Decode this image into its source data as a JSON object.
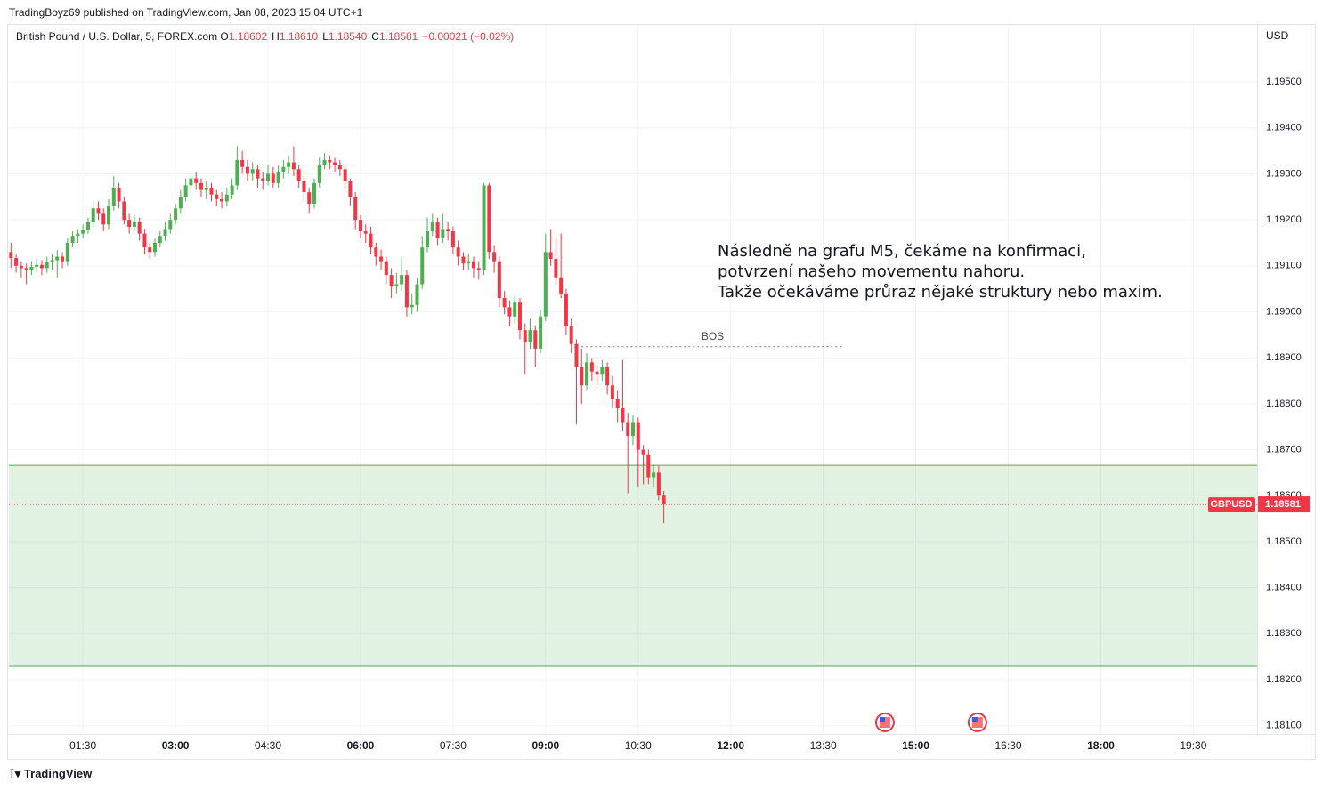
{
  "header": "TradingBoyz69 published on TradingView.com, Jan 08, 2023 15:04 UTC+1",
  "footer": "TradingView",
  "chart_data": {
    "type": "candlestick",
    "title": "British Pound / U.S. Dollar, 5, FOREX.com",
    "legend": [
      {
        "key": "O",
        "value": "1.18602"
      },
      {
        "key": "H",
        "value": "1.18610"
      },
      {
        "key": "L",
        "value": "1.18540"
      },
      {
        "key": "C",
        "value": "1.18581"
      }
    ],
    "change": "−0.00021 (−0.02%)",
    "currency": "USD",
    "grid": true,
    "series": [
      {
        "name": "GBPUSD",
        "up_color": "#4caf50",
        "down_color": "#f23645",
        "x": [
          20,
          25,
          30,
          35,
          40,
          45,
          50,
          55,
          60,
          65,
          70,
          75,
          80,
          85,
          90,
          95,
          100,
          105,
          110,
          115,
          120,
          125,
          130,
          135,
          140,
          145,
          150,
          155,
          160,
          165,
          170,
          175,
          180,
          185,
          190,
          195,
          200,
          205,
          210,
          215,
          220,
          225,
          230,
          235,
          240,
          245,
          250,
          255,
          260,
          265,
          270,
          275,
          280,
          285,
          290,
          295,
          300,
          305,
          310,
          315,
          320,
          325,
          330,
          335,
          340,
          345,
          350,
          355,
          360,
          365,
          370,
          375,
          380,
          385,
          390,
          395,
          400,
          405,
          410,
          415,
          420,
          425,
          430,
          435,
          440,
          445,
          450,
          455,
          460,
          465,
          470,
          475,
          480,
          485,
          490,
          495,
          500,
          505,
          510,
          515,
          520,
          525,
          530,
          535,
          540,
          545,
          550,
          555,
          560,
          565,
          570,
          575,
          580,
          585,
          590,
          595,
          600,
          605,
          610,
          615,
          620,
          625,
          630,
          635,
          640,
          645,
          650,
          655
        ],
        "open": [
          1.1913,
          1.19117,
          1.191,
          1.19095,
          1.1909,
          1.19098,
          1.19102,
          1.19095,
          1.19108,
          1.19112,
          1.1912,
          1.1911,
          1.1915,
          1.19165,
          1.1917,
          1.19178,
          1.19195,
          1.19225,
          1.19215,
          1.1919,
          1.1923,
          1.1927,
          1.1924,
          1.192,
          1.19185,
          1.19195,
          1.1917,
          1.1914,
          1.1913,
          1.1915,
          1.19165,
          1.1918,
          1.192,
          1.19225,
          1.1925,
          1.19275,
          1.1929,
          1.1928,
          1.19265,
          1.1927,
          1.19255,
          1.19245,
          1.1924,
          1.19255,
          1.19275,
          1.1933,
          1.19315,
          1.193,
          1.1931,
          1.1929,
          1.19285,
          1.193,
          1.1928,
          1.19305,
          1.19315,
          1.19325,
          1.1931,
          1.19285,
          1.1926,
          1.19235,
          1.1928,
          1.1932,
          1.1933,
          1.19325,
          1.1932,
          1.1931,
          1.19285,
          1.1925,
          1.192,
          1.19175,
          1.1917,
          1.1914,
          1.1912,
          1.1911,
          1.1908,
          1.19055,
          1.1906,
          1.1908,
          1.1901,
          1.19015,
          1.1906,
          1.1914,
          1.19175,
          1.19195,
          1.1916,
          1.1918,
          1.19175,
          1.1914,
          1.1912,
          1.19105,
          1.1911,
          1.19095,
          1.1909,
          1.19275,
          1.1913,
          1.1911,
          1.1903,
          1.1901,
          1.1899,
          1.1902,
          1.1896,
          1.18935,
          1.1896,
          1.1892,
          1.1899,
          1.1913,
          1.19115,
          1.19075,
          1.1904,
          1.1897,
          1.1893,
          1.1888,
          1.1884,
          1.1889,
          1.1887,
          1.18865,
          1.1888,
          1.1884,
          1.1881,
          1.1879,
          1.1876,
          1.1873,
          1.1876,
          1.187,
          1.1869,
          1.1864,
          1.1865,
          1.18602
        ],
        "high": [
          1.1915,
          1.19125,
          1.1911,
          1.19105,
          1.1911,
          1.19115,
          1.19112,
          1.1912,
          1.19125,
          1.19135,
          1.1913,
          1.1916,
          1.19175,
          1.1918,
          1.1919,
          1.19205,
          1.1924,
          1.1924,
          1.19225,
          1.19245,
          1.19295,
          1.1928,
          1.1925,
          1.19215,
          1.1921,
          1.19205,
          1.1918,
          1.1915,
          1.1916,
          1.19175,
          1.19195,
          1.19215,
          1.19235,
          1.19265,
          1.1929,
          1.193,
          1.19305,
          1.1929,
          1.19285,
          1.1928,
          1.19265,
          1.1926,
          1.1927,
          1.1929,
          1.1936,
          1.1935,
          1.1933,
          1.19325,
          1.1932,
          1.19305,
          1.1932,
          1.19315,
          1.1932,
          1.1933,
          1.1934,
          1.1936,
          1.1932,
          1.19295,
          1.1927,
          1.1929,
          1.19335,
          1.19345,
          1.1934,
          1.19335,
          1.1933,
          1.1932,
          1.1929,
          1.1926,
          1.1921,
          1.1919,
          1.19185,
          1.1915,
          1.19135,
          1.1912,
          1.19095,
          1.19085,
          1.1912,
          1.1909,
          1.1904,
          1.19075,
          1.19165,
          1.19205,
          1.19215,
          1.19205,
          1.19215,
          1.19195,
          1.19185,
          1.19155,
          1.1913,
          1.19125,
          1.1912,
          1.1911,
          1.1928,
          1.1928,
          1.19145,
          1.1912,
          1.19045,
          1.19025,
          1.19035,
          1.1903,
          1.18975,
          1.18985,
          1.1897,
          1.19005,
          1.1917,
          1.1918,
          1.1916,
          1.1917,
          1.1905,
          1.18985,
          1.1894,
          1.1892,
          1.1891,
          1.189,
          1.18885,
          1.18895,
          1.1889,
          1.1886,
          1.1883,
          1.18895,
          1.1878,
          1.18775,
          1.1877,
          1.1871,
          1.187,
          1.1867,
          1.18665,
          1.1861
        ],
        "low": [
          1.19095,
          1.19085,
          1.19075,
          1.1906,
          1.1908,
          1.19085,
          1.1908,
          1.19085,
          1.1909,
          1.19075,
          1.19095,
          1.191,
          1.1914,
          1.1915,
          1.1916,
          1.1917,
          1.19185,
          1.192,
          1.19175,
          1.1918,
          1.1922,
          1.19225,
          1.1919,
          1.1917,
          1.19175,
          1.19155,
          1.19125,
          1.19115,
          1.1912,
          1.1914,
          1.19155,
          1.1917,
          1.1919,
          1.19215,
          1.1924,
          1.19265,
          1.19265,
          1.1925,
          1.19245,
          1.1924,
          1.1923,
          1.19225,
          1.1923,
          1.19245,
          1.19265,
          1.193,
          1.19285,
          1.19285,
          1.1927,
          1.19265,
          1.19275,
          1.1927,
          1.1927,
          1.1929,
          1.193,
          1.19295,
          1.1927,
          1.1924,
          1.19215,
          1.19225,
          1.1927,
          1.1931,
          1.1931,
          1.19305,
          1.19295,
          1.1927,
          1.1923,
          1.1918,
          1.1916,
          1.1915,
          1.19125,
          1.191,
          1.1909,
          1.1906,
          1.1903,
          1.1904,
          1.19045,
          1.1899,
          1.18995,
          1.19,
          1.1905,
          1.1913,
          1.19165,
          1.19145,
          1.1915,
          1.19155,
          1.19125,
          1.191,
          1.1909,
          1.1909,
          1.19075,
          1.1907,
          1.1908,
          1.19115,
          1.19085,
          1.1901,
          1.18995,
          1.1897,
          1.18975,
          1.1894,
          1.18865,
          1.1892,
          1.1888,
          1.1891,
          1.1898,
          1.191,
          1.1906,
          1.1903,
          1.1895,
          1.1891,
          1.18755,
          1.188,
          1.1883,
          1.1885,
          1.1884,
          1.1885,
          1.1882,
          1.1879,
          1.1876,
          1.1874,
          1.18605,
          1.1871,
          1.1862,
          1.18625,
          1.18625,
          1.1862,
          1.1859,
          1.1854
        ],
        "close": [
          1.19117,
          1.191,
          1.19095,
          1.1909,
          1.19098,
          1.19102,
          1.19095,
          1.19108,
          1.19112,
          1.1912,
          1.1911,
          1.1915,
          1.19165,
          1.1917,
          1.19178,
          1.19195,
          1.19225,
          1.19215,
          1.1919,
          1.1923,
          1.1927,
          1.1924,
          1.192,
          1.19185,
          1.19195,
          1.1917,
          1.1914,
          1.1913,
          1.1915,
          1.19165,
          1.1918,
          1.192,
          1.19225,
          1.1925,
          1.19275,
          1.1929,
          1.1928,
          1.19265,
          1.1927,
          1.19255,
          1.19245,
          1.1924,
          1.19255,
          1.19275,
          1.1933,
          1.19315,
          1.193,
          1.1931,
          1.1929,
          1.19285,
          1.193,
          1.1928,
          1.19305,
          1.19315,
          1.19325,
          1.1931,
          1.19285,
          1.1926,
          1.19235,
          1.1928,
          1.1932,
          1.1933,
          1.19325,
          1.1932,
          1.1931,
          1.19285,
          1.1925,
          1.192,
          1.19175,
          1.1917,
          1.1914,
          1.1912,
          1.1911,
          1.1908,
          1.19055,
          1.1906,
          1.1908,
          1.1901,
          1.19015,
          1.1906,
          1.1914,
          1.19175,
          1.19195,
          1.1916,
          1.1918,
          1.19175,
          1.1914,
          1.1912,
          1.19105,
          1.1911,
          1.19095,
          1.1909,
          1.19275,
          1.1913,
          1.1911,
          1.1903,
          1.1901,
          1.1899,
          1.1902,
          1.1896,
          1.18935,
          1.1896,
          1.1892,
          1.1899,
          1.1913,
          1.19115,
          1.19075,
          1.1904,
          1.1897,
          1.1893,
          1.1888,
          1.1884,
          1.1889,
          1.1887,
          1.18865,
          1.1888,
          1.1884,
          1.1881,
          1.1879,
          1.1876,
          1.1873,
          1.1876,
          1.187,
          1.1869,
          1.1864,
          1.1865,
          1.18602,
          1.18581
        ]
      }
    ],
    "xlim": [
      18,
      1232
    ],
    "ylim": [
      1.18082,
      1.19624
    ],
    "xticks": [
      {
        "value": 90,
        "label": "01:30"
      },
      {
        "value": 180,
        "label": "03:00"
      },
      {
        "value": 270,
        "label": "04:30"
      },
      {
        "value": 360,
        "label": "06:00"
      },
      {
        "value": 450,
        "label": "07:30"
      },
      {
        "value": 540,
        "label": "09:00"
      },
      {
        "value": 630,
        "label": "10:30"
      },
      {
        "value": 720,
        "label": "12:00"
      },
      {
        "value": 810,
        "label": "13:30"
      },
      {
        "value": 900,
        "label": "15:00"
      },
      {
        "value": 990,
        "label": "16:30"
      },
      {
        "value": 1080,
        "label": "18:00"
      },
      {
        "value": 1170,
        "label": "19:30"
      }
    ],
    "yticks": [
      {
        "value": 1.181,
        "label": "1.18100"
      },
      {
        "value": 1.182,
        "label": "1.18200"
      },
      {
        "value": 1.183,
        "label": "1.18300"
      },
      {
        "value": 1.184,
        "label": "1.18400"
      },
      {
        "value": 1.185,
        "label": "1.18500"
      },
      {
        "value": 1.186,
        "label": "1.18600"
      },
      {
        "value": 1.187,
        "label": "1.18700"
      },
      {
        "value": 1.188,
        "label": "1.18800"
      },
      {
        "value": 1.189,
        "label": "1.18900"
      },
      {
        "value": 1.19,
        "label": "1.19000"
      },
      {
        "value": 1.191,
        "label": "1.19100"
      },
      {
        "value": 1.192,
        "label": "1.19200"
      },
      {
        "value": 1.193,
        "label": "1.19300"
      },
      {
        "value": 1.194,
        "label": "1.19400"
      },
      {
        "value": 1.195,
        "label": "1.19500"
      }
    ],
    "zone": {
      "low": 1.18229,
      "high": 1.18666,
      "color": "#4caf50"
    },
    "bos": {
      "label": "BOS",
      "price": 1.18924,
      "x0": 575,
      "x1": 830
    },
    "annotation": [
      "Následně na grafu M5, čekáme na konfirmaci,",
      "potvrzení našeho movementu nahoru.",
      "Takže očekáváme průraz nějaké struktury nebo maxim."
    ],
    "event_times": [
      870,
      960
    ]
  }
}
